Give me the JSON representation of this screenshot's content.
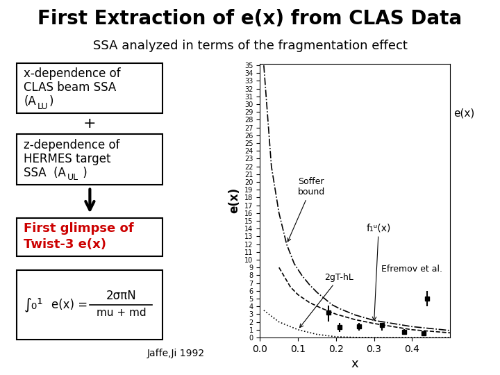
{
  "chart_data": {
    "type": "line",
    "title": "First Extraction of e(x) from CLAS Data",
    "subtitle": "SSA analyzed in terms of the fragmentation effect",
    "x_label": "x",
    "y_label": "e(x)",
    "xlim": [
      0,
      0.5
    ],
    "xticks": [
      {
        "value": 0,
        "label": "0.0"
      },
      0.1,
      0.2,
      0.3,
      0.4
    ],
    "ylim": [
      0,
      35.2
    ],
    "yticks": [
      0,
      1,
      2,
      3,
      4,
      5,
      6,
      7,
      8,
      9,
      10,
      11,
      12,
      13,
      14,
      15,
      16,
      17,
      18,
      19,
      20,
      21,
      22,
      23,
      24,
      25,
      26,
      27,
      28,
      29,
      30,
      31,
      32,
      33,
      34,
      35
    ],
    "grid": false,
    "series": [
      {
        "type": "line",
        "line_style": "dashdot",
        "color": "#000000",
        "x": [
          0.01,
          0.03,
          0.05,
          0.07,
          0.09,
          0.11,
          0.13,
          0.15,
          0.17,
          0.19,
          0.21,
          0.25,
          0.3,
          0.4,
          0.5
        ],
        "values": [
          35,
          22,
          16,
          12,
          9.5,
          8.0,
          6.8,
          5.8,
          5.0,
          4.2,
          3.7,
          2.9,
          2.2,
          1.4,
          0.9
        ]
      },
      {
        "type": "line",
        "line_style": "dashed",
        "color": "#000000",
        "x": [
          0.05,
          0.08,
          0.1,
          0.13,
          0.16,
          0.2,
          0.25,
          0.3,
          0.35,
          0.4,
          0.45,
          0.5
        ],
        "values": [
          9.0,
          6.5,
          5.5,
          4.5,
          3.8,
          3.0,
          2.3,
          1.8,
          1.4,
          1.0,
          0.8,
          0.6
        ]
      },
      {
        "type": "line",
        "line_style": "dotted",
        "color": "#000000",
        "x": [
          0.01,
          0.05,
          0.1,
          0.15,
          0.2,
          0.25,
          0.3,
          0.35,
          0.4,
          0.45,
          0.5
        ],
        "values": [
          3.5,
          2.0,
          1.0,
          0.4,
          0.1,
          0.02,
          0.002,
          0.0002,
          0.0,
          0.0,
          0.0
        ]
      },
      {
        "type": "scatter",
        "marker": "square",
        "color": "#000000",
        "x": [
          0.18,
          0.21,
          0.26,
          0.32,
          0.38,
          0.43
        ],
        "values": [
          3.2,
          1.35,
          1.4,
          1.6,
          0.68,
          0.5
        ],
        "yerr_lo": [
          1.15,
          0.6,
          0.55,
          0.75,
          0.35,
          0.3
        ],
        "yerr_hi": [
          0.9,
          0.5,
          0.45,
          0.25,
          0.35,
          0.3
        ]
      },
      {
        "type": "scatter",
        "marker": "square",
        "color": "#000000",
        "x": [
          0.44
        ],
        "values": [
          5.0
        ],
        "yerr_lo": [
          0.95
        ],
        "yerr_hi": [
          0.95
        ]
      }
    ],
    "annotations": [
      {
        "text": "x-dependence of"
      },
      {
        "text": "CLAS beam SSA"
      },
      {
        "text": "(A"
      },
      {
        "text": "LU"
      },
      {
        "text": ")"
      },
      {
        "text": "+"
      },
      {
        "text": "z-dependence of"
      },
      {
        "text": "HERMES target"
      },
      {
        "text": "SSA  (A"
      },
      {
        "text": "UL"
      },
      {
        "text": " )"
      },
      {
        "text": "First glimpse of",
        "color": "#cc0000"
      },
      {
        "text": "Twist-3 e(x)",
        "color": "#cc0000"
      },
      {
        "text": "Efremov et al."
      },
      {
        "text": "f₁ᵘ(x)"
      },
      {
        "text": "Soffer\nbound"
      },
      {
        "text": "2gT-hL"
      },
      {
        "text": "e(x)"
      },
      {
        "text": "∫₀¹"
      },
      {
        "text": "e(x) ="
      },
      {
        "text": "2σπN"
      },
      {
        "text": "mu + md"
      },
      {
        "text": "Jaffe,Ji 1992"
      }
    ]
  }
}
